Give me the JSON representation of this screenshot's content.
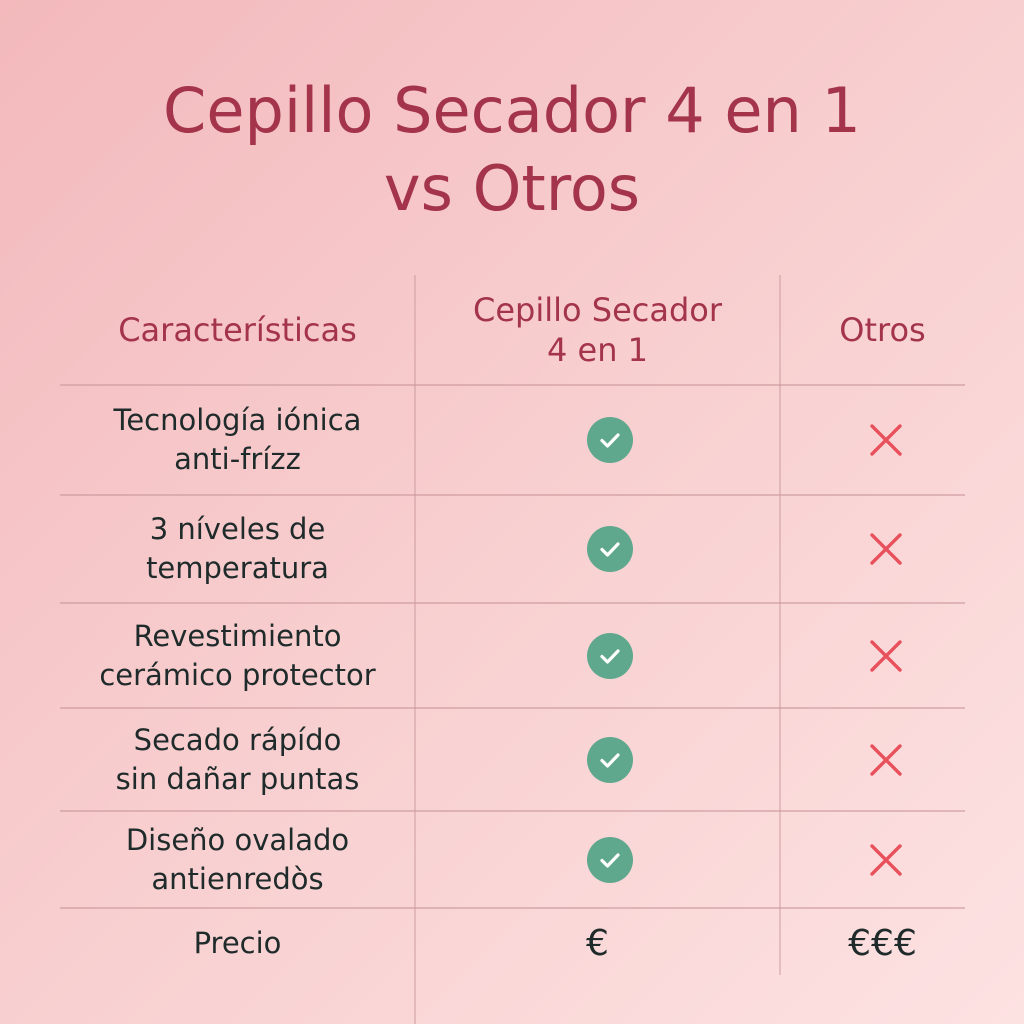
{
  "title": {
    "line1": "Cepillo Secador 4 en 1",
    "line2": "vs Otros"
  },
  "colors": {
    "accent": "#a3344a",
    "check": "#5fa88e",
    "cross": "#e8505b",
    "text": "#1f2a2a"
  },
  "table": {
    "headers": [
      {
        "line1": "Características",
        "line2": ""
      },
      {
        "line1": "Cepillo Secador",
        "line2": "4 en 1"
      },
      {
        "line1": "Otros",
        "line2": ""
      }
    ],
    "rows": [
      {
        "line1": "Tecnología iónica",
        "line2": "anti-frízz",
        "product": "check-icon",
        "others": "cross-icon"
      },
      {
        "line1": "3 níveles de",
        "line2": "temperatura",
        "product": "check-icon",
        "others": "cross-icon"
      },
      {
        "line1": "Revestimiento",
        "line2": "cerámico protector",
        "product": "check-icon",
        "others": "cross-icon"
      },
      {
        "line1": "Secado rápído",
        "line2": "sin dañar puntas",
        "product": "check-icon",
        "others": "cross-icon"
      },
      {
        "line1": "Diseño ovalado",
        "line2": "antienredòs",
        "product": "check-icon",
        "others": "cross-icon"
      }
    ],
    "price_row": {
      "label": "Precio",
      "product": "€",
      "others": "€€€"
    }
  }
}
